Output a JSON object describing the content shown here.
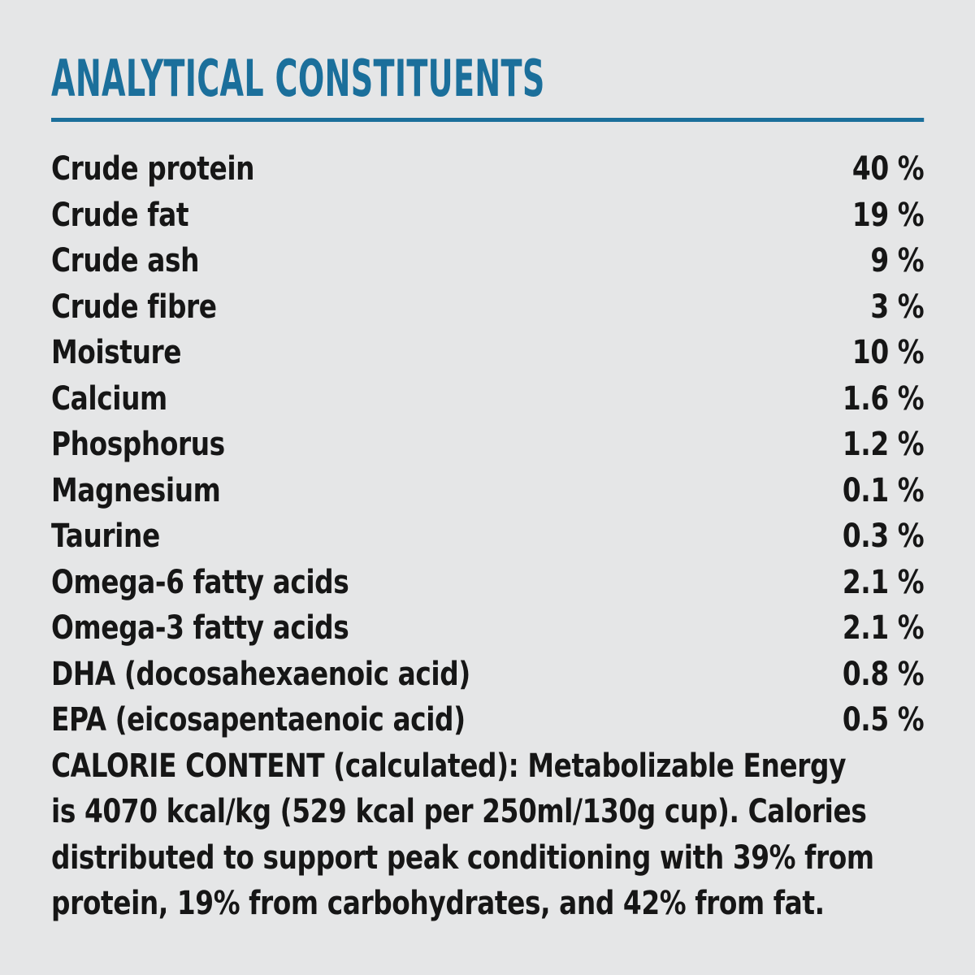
{
  "colors": {
    "background": "#e5e6e7",
    "accent": "#1b6f9b",
    "text": "#161616"
  },
  "header": {
    "title": "ANALYTICAL CONSTITUENTS"
  },
  "nutrients": {
    "rows": [
      {
        "label": "Crude protein",
        "value": "40 %"
      },
      {
        "label": "Crude fat",
        "value": "19 %"
      },
      {
        "label": "Crude ash",
        "value": "9 %"
      },
      {
        "label": "Crude fibre",
        "value": "3 %"
      },
      {
        "label": "Moisture",
        "value": "10 %"
      },
      {
        "label": "Calcium",
        "value": "1.6 %"
      },
      {
        "label": "Phosphorus",
        "value": "1.2 %"
      },
      {
        "label": "Magnesium",
        "value": "0.1 %"
      },
      {
        "label": "Taurine",
        "value": "0.3 %"
      },
      {
        "label": "Omega-6 fatty acids",
        "value": "2.1 %"
      },
      {
        "label": "Omega-3 fatty acids",
        "value": "2.1 %"
      },
      {
        "label": "DHA (docosahexaenoic acid)",
        "value": "0.8 %"
      },
      {
        "label": "EPA (eicosapentaenoic acid)",
        "value": "0.5 %"
      }
    ]
  },
  "calorie_content": {
    "lines": [
      "CALORIE CONTENT (calculated): Metabolizable Energy",
      "is 4070 kcal/kg (529 kcal per 250ml/130g cup). Calories",
      "distributed to support peak conditioning with 39% from",
      "protein, 19% from carbohydrates, and 42% from fat."
    ]
  }
}
